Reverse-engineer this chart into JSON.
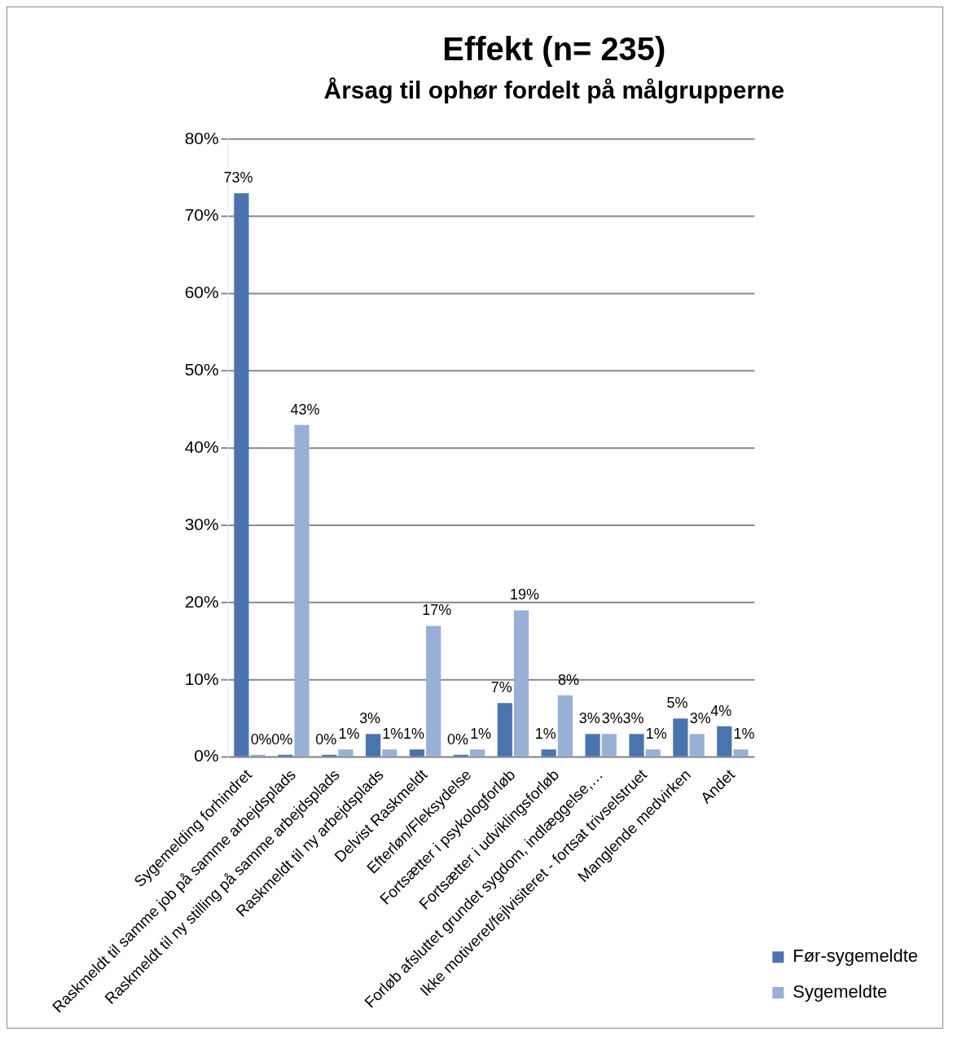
{
  "chart_data": {
    "type": "bar",
    "title": "Effekt (n= 235)",
    "subtitle": "Årsag til ophør fordelt på målgrupperne",
    "categories": [
      "Sygemelding forhindret",
      "Raskmeldt til samme job på samme arbejdsplads",
      "Raskmeldt til ny stilling på samme arbejdsplads",
      "Raskmeldt til ny arbejdsplads",
      "Delvist Raskmeldt",
      "Efterløn/Fleksydelse",
      "Fortsætter i psykologforløb",
      "Fortsætter i udviklingsforløb",
      "Forløb afsluttet grundet sygdom, indlæggelse,…",
      "Ikke motiveret/fejlvisiteret - fortsat trivselstruet",
      "Manglende medvirken",
      "Andet"
    ],
    "series": [
      {
        "name": "Før-sygemeldte",
        "color": "#4a74ae",
        "values": [
          73,
          0,
          0,
          3,
          1,
          0,
          7,
          1,
          3,
          3,
          5,
          4
        ],
        "value_labels": [
          "73%",
          "0%",
          "0%",
          "3%",
          "1%",
          "0%",
          "7%",
          "1%",
          "3%",
          "3%",
          "5%",
          "4%"
        ]
      },
      {
        "name": "Sygemeldte",
        "color": "#98afd6",
        "values": [
          0,
          43,
          1,
          1,
          17,
          1,
          19,
          8,
          3,
          1,
          3,
          1
        ],
        "value_labels": [
          "0%",
          "43%",
          "1%",
          "1%",
          "17%",
          "1%",
          "19%",
          "8%",
          "3%",
          "1%",
          "3%",
          "1%"
        ]
      }
    ],
    "ylim": [
      0,
      80
    ],
    "yticks": [
      {
        "value": 0,
        "label": "0%"
      },
      {
        "value": 10,
        "label": "10%"
      },
      {
        "value": 20,
        "label": "20%"
      },
      {
        "value": 30,
        "label": "30%"
      },
      {
        "value": 40,
        "label": "40%"
      },
      {
        "value": 50,
        "label": "50%"
      },
      {
        "value": 60,
        "label": "60%"
      },
      {
        "value": 70,
        "label": "70%"
      },
      {
        "value": 80,
        "label": "80%"
      }
    ],
    "grid": "y",
    "legend": "bottom right"
  }
}
